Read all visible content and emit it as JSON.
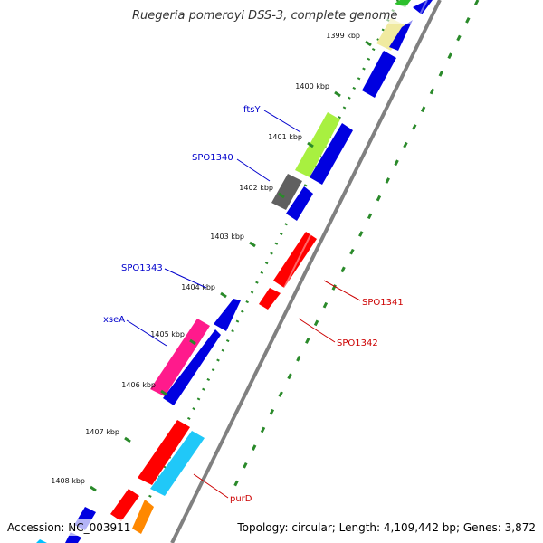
{
  "title": "Ruegeria pomeroyi DSS-3, complete genome",
  "footer": {
    "accession": "Accession: NC_003911",
    "summary": "Topology: circular; Length: 4,109,442 bp; Genes: 3,872"
  },
  "colors": {
    "backbone": "#808080",
    "forward_label": "#0000cc",
    "reverse_label": "#cc0000",
    "tick": "#2a8a2a"
  },
  "ticks": [
    {
      "label": "1399 kbp"
    },
    {
      "label": "1400 kbp"
    },
    {
      "label": "1401 kbp"
    },
    {
      "label": "1402 kbp"
    },
    {
      "label": "1403 kbp"
    },
    {
      "label": "1404 kbp"
    },
    {
      "label": "1405 kbp"
    },
    {
      "label": "1406 kbp"
    },
    {
      "label": "1407 kbp"
    },
    {
      "label": "1408 kbp"
    }
  ],
  "gene_labels": {
    "ftsY": "ftsY",
    "SPO1340": "SPO1340",
    "SPO1343": "SPO1343",
    "xseA": "xseA",
    "SPO1341": "SPO1341",
    "SPO1342": "SPO1342",
    "purD": "purD"
  }
}
